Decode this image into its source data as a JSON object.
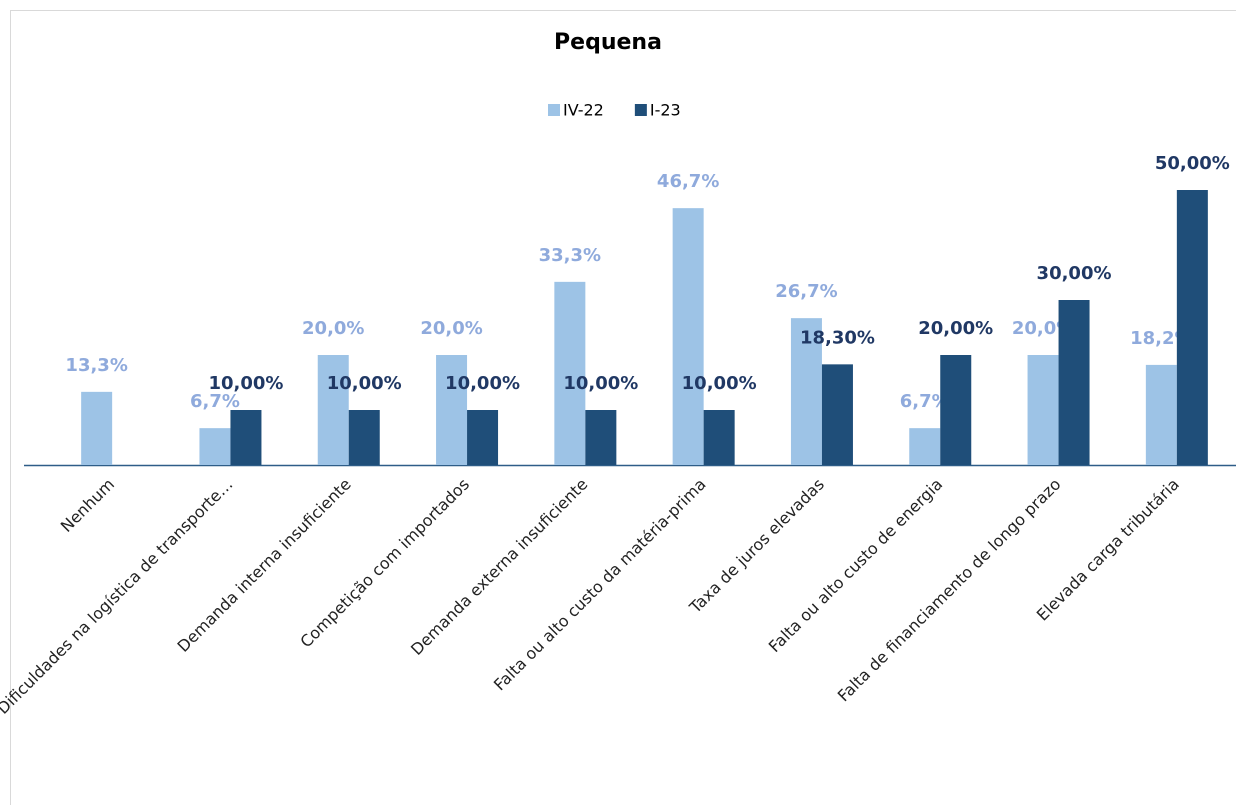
{
  "chart_data": {
    "type": "bar",
    "title": "Pequena",
    "categories": [
      "Nenhum",
      "Dificuldades na logística de transporte…",
      "Demanda interna insuficiente",
      "Competição com importados",
      "Demanda externa insuficiente",
      "Falta ou alto custo da matéria-prima",
      "Taxa de juros elevadas",
      "Falta ou alto custo de energia",
      "Falta de financiamento de longo prazo",
      "Elevada carga tributária"
    ],
    "series": [
      {
        "name": "IV-22",
        "color": "#9dc3e6",
        "label_color": "#8faadc",
        "values": [
          13.3,
          6.7,
          20.0,
          20.0,
          33.3,
          46.7,
          26.7,
          6.7,
          20.0,
          18.2
        ],
        "value_labels": [
          "13,3%",
          "6,7%",
          "20,0%",
          "20,0%",
          "33,3%",
          "46,7%",
          "26,7%",
          "6,7%",
          "20,0%",
          "18,2%"
        ]
      },
      {
        "name": "I-23",
        "color": "#1f4e79",
        "label_color": "#203864",
        "values": [
          null,
          10.0,
          10.0,
          10.0,
          10.0,
          10.0,
          18.3,
          20.0,
          30.0,
          50.0
        ],
        "value_labels": [
          null,
          "10,00%",
          "10,00%",
          "10,00%",
          "10,00%",
          "10,00%",
          "18,30%",
          "20,00%",
          "30,00%",
          "50,00%"
        ]
      }
    ],
    "legend": "top"
  }
}
